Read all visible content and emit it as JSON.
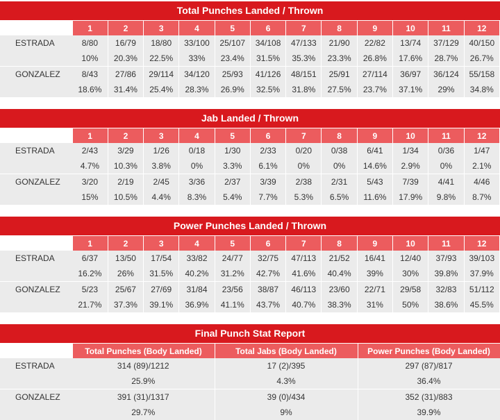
{
  "sections": [
    {
      "title": "Total Punches Landed / Thrown",
      "rounds": [
        "1",
        "2",
        "3",
        "4",
        "5",
        "6",
        "7",
        "8",
        "9",
        "10",
        "11",
        "12"
      ],
      "fighters": [
        {
          "name": "ESTRADA",
          "landed": [
            "8/80",
            "16/79",
            "18/80",
            "33/100",
            "25/107",
            "34/108",
            "47/133",
            "21/90",
            "22/82",
            "13/74",
            "37/129",
            "40/150"
          ],
          "pct": [
            "10%",
            "20.3%",
            "22.5%",
            "33%",
            "23.4%",
            "31.5%",
            "35.3%",
            "23.3%",
            "26.8%",
            "17.6%",
            "28.7%",
            "26.7%"
          ]
        },
        {
          "name": "GONZALEZ",
          "landed": [
            "8/43",
            "27/86",
            "29/114",
            "34/120",
            "25/93",
            "41/126",
            "48/151",
            "25/91",
            "27/114",
            "36/97",
            "36/124",
            "55/158"
          ],
          "pct": [
            "18.6%",
            "31.4%",
            "25.4%",
            "28.3%",
            "26.9%",
            "32.5%",
            "31.8%",
            "27.5%",
            "23.7%",
            "37.1%",
            "29%",
            "34.8%"
          ]
        }
      ]
    },
    {
      "title": "Jab Landed / Thrown",
      "rounds": [
        "1",
        "2",
        "3",
        "4",
        "5",
        "6",
        "7",
        "8",
        "9",
        "10",
        "11",
        "12"
      ],
      "fighters": [
        {
          "name": "ESTRADA",
          "landed": [
            "2/43",
            "3/29",
            "1/26",
            "0/18",
            "1/30",
            "2/33",
            "0/20",
            "0/38",
            "6/41",
            "1/34",
            "0/36",
            "1/47"
          ],
          "pct": [
            "4.7%",
            "10.3%",
            "3.8%",
            "0%",
            "3.3%",
            "6.1%",
            "0%",
            "0%",
            "14.6%",
            "2.9%",
            "0%",
            "2.1%"
          ]
        },
        {
          "name": "GONZALEZ",
          "landed": [
            "3/20",
            "2/19",
            "2/45",
            "3/36",
            "2/37",
            "3/39",
            "2/38",
            "2/31",
            "5/43",
            "7/39",
            "4/41",
            "4/46"
          ],
          "pct": [
            "15%",
            "10.5%",
            "4.4%",
            "8.3%",
            "5.4%",
            "7.7%",
            "5.3%",
            "6.5%",
            "11.6%",
            "17.9%",
            "9.8%",
            "8.7%"
          ]
        }
      ]
    },
    {
      "title": "Power Punches Landed / Thrown",
      "rounds": [
        "1",
        "2",
        "3",
        "4",
        "5",
        "6",
        "7",
        "8",
        "9",
        "10",
        "11",
        "12"
      ],
      "fighters": [
        {
          "name": "ESTRADA",
          "landed": [
            "6/37",
            "13/50",
            "17/54",
            "33/82",
            "24/77",
            "32/75",
            "47/113",
            "21/52",
            "16/41",
            "12/40",
            "37/93",
            "39/103"
          ],
          "pct": [
            "16.2%",
            "26%",
            "31.5%",
            "40.2%",
            "31.2%",
            "42.7%",
            "41.6%",
            "40.4%",
            "39%",
            "30%",
            "39.8%",
            "37.9%"
          ]
        },
        {
          "name": "GONZALEZ",
          "landed": [
            "5/23",
            "25/67",
            "27/69",
            "31/84",
            "23/56",
            "38/87",
            "46/113",
            "23/60",
            "22/71",
            "29/58",
            "32/83",
            "51/112"
          ],
          "pct": [
            "21.7%",
            "37.3%",
            "39.1%",
            "36.9%",
            "41.1%",
            "43.7%",
            "40.7%",
            "38.3%",
            "31%",
            "50%",
            "38.6%",
            "45.5%"
          ]
        }
      ]
    }
  ],
  "final": {
    "title": "Final Punch Stat Report",
    "columns": [
      "Total Punches (Body Landed)",
      "Total Jabs (Body Landed)",
      "Power Punches (Body Landed)"
    ],
    "fighters": [
      {
        "name": "ESTRADA",
        "values": [
          "314 (89)/1212",
          "17 (2)/395",
          "297 (87)/817"
        ],
        "pct": [
          "25.9%",
          "4.3%",
          "36.4%"
        ]
      },
      {
        "name": "GONZALEZ",
        "values": [
          "391 (31)/1317",
          "39 (0)/434",
          "352 (31)/883"
        ],
        "pct": [
          "29.7%",
          "9%",
          "39.9%"
        ]
      }
    ]
  },
  "colors": {
    "title_bg": "#d8191e",
    "header_bg": "#ec5c5e",
    "cell_bg": "#ebebeb"
  }
}
